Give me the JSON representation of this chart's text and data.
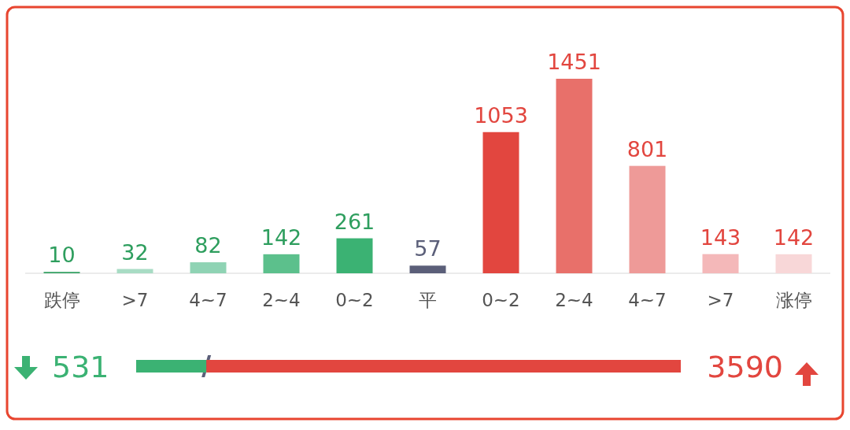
{
  "chart_data": [
    {
      "type": "bar",
      "categories": [
        "跌停",
        ">7",
        "4~7",
        "2~4",
        "0~2",
        "平",
        "0~2",
        "2~4",
        "4~7",
        ">7",
        "涨停"
      ],
      "values": [
        10,
        32,
        82,
        142,
        261,
        57,
        1053,
        1451,
        801,
        143,
        142
      ],
      "colors": [
        "#2e9e5e",
        "#a8dcc4",
        "#8fd3b4",
        "#5cc08c",
        "#3bb273",
        "#5b5f79",
        "#e2463f",
        "#e8706a",
        "#ee9a98",
        "#f4b8b9",
        "#f8d7d8"
      ],
      "data_labels": true
    },
    {
      "type": "bar",
      "orientation": "horizontal",
      "stacked": true,
      "categories": [
        null
      ],
      "series": [
        {
          "color": "#3bb273",
          "values": [
            531
          ]
        },
        {
          "color": "#e2463f",
          "values": [
            3590
          ]
        }
      ],
      "data_labels": true
    }
  ]
}
